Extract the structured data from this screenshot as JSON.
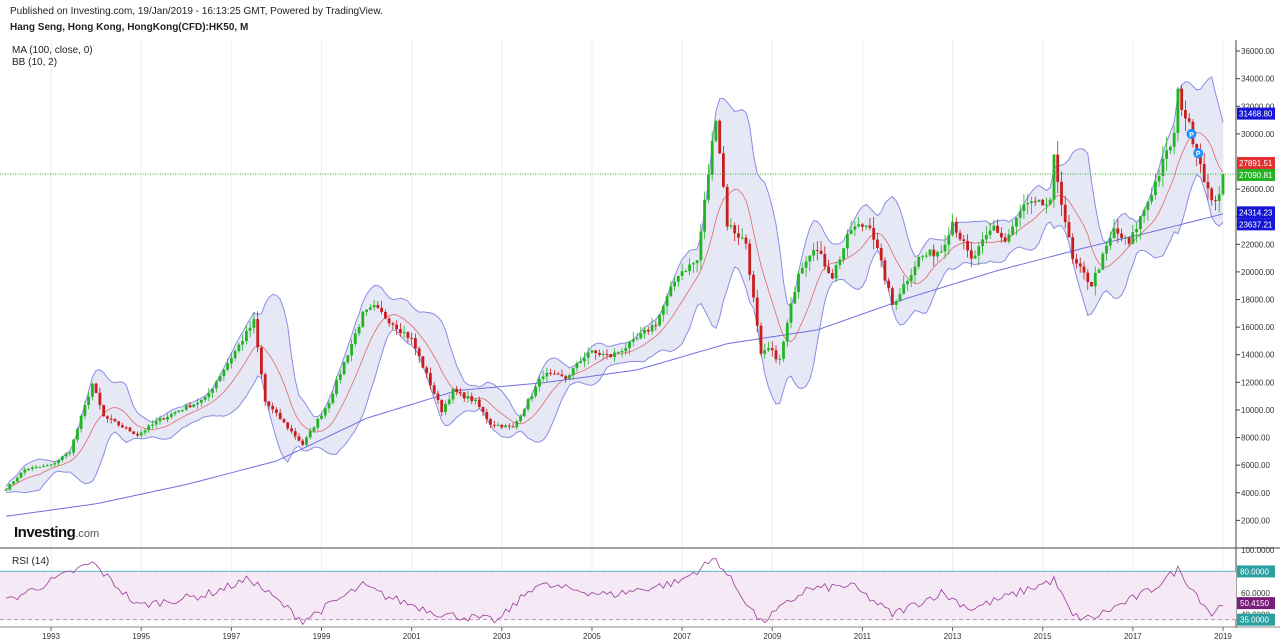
{
  "header": {
    "published": "Published on Investing.com, 19/Jan/2019 - 16:13:25 GMT, Powered by TradingView.",
    "symbol": "Hang Seng, Hong Kong, HongKong(CFD):HK50, M"
  },
  "indicators": {
    "ma": "MA (100, close, 0)",
    "bb": "BB (10, 2)",
    "rsi": "RSI (14)"
  },
  "logo": {
    "main": "Investing",
    "suffix": ".com"
  },
  "colors": {
    "up": "#22b422",
    "down": "#c81e1e",
    "ma": "#6f6fe0",
    "bb_band": "#8c8ce6",
    "bb_fill": "#e6e8f5",
    "bb_mid": "#e06a6a",
    "rsi_line": "#9b3c9b",
    "rsi_fill": "#f5e9f5",
    "price_line": "#22b422",
    "badge_blue": "#1515d8",
    "badge_red": "#e03030",
    "badge_green": "#22b422",
    "badge_purple": "#7a1d7a",
    "marker": "#1e90ff"
  },
  "chart_data": {
    "type": "line",
    "title": "Hang Seng, Hong Kong, HongKong(CFD):HK50, M",
    "interval": "monthly",
    "x_ticks": [
      "1993",
      "1995",
      "1997",
      "1999",
      "2001",
      "2003",
      "2005",
      "2007",
      "2009",
      "2011",
      "2013",
      "2015",
      "2017",
      "2019"
    ],
    "price_axis": {
      "ticks": [
        "2000.00",
        "4000.00",
        "6000.00",
        "8000.00",
        "10000.00",
        "12000.00",
        "14000.00",
        "16000.00",
        "18000.00",
        "20000.00",
        "22000.00",
        "24000.00",
        "26000.00",
        "30000.00",
        "32000.00",
        "34000.00",
        "36000.00"
      ],
      "range": [
        0,
        36800
      ],
      "last_close_line": 27090.81
    },
    "price_badges": [
      {
        "label": "31468.80",
        "value": 31468.8,
        "color": "blue"
      },
      {
        "label": "27891.51",
        "value": 27891.51,
        "color": "red"
      },
      {
        "label": "27090.81",
        "value": 27090.81,
        "color": "green"
      },
      {
        "label": "24314.23",
        "value": 24314.23,
        "color": "blue"
      },
      {
        "label": "23637.21",
        "value": 23637.21,
        "color": "blue"
      }
    ],
    "price_series_keypoints": [
      [
        "1992-01",
        4300
      ],
      [
        "1992-06",
        5700
      ],
      [
        "1993-01",
        6000
      ],
      [
        "1993-06",
        7000
      ],
      [
        "1993-12",
        11900
      ],
      [
        "1994-03",
        9500
      ],
      [
        "1994-12",
        8200
      ],
      [
        "1995-06",
        9300
      ],
      [
        "1995-12",
        10100
      ],
      [
        "1996-06",
        10800
      ],
      [
        "1996-12",
        13400
      ],
      [
        "1997-07",
        16400
      ],
      [
        "1997-10",
        10600
      ],
      [
        "1998-08",
        7500
      ],
      [
        "1999-03",
        10600
      ],
      [
        "1999-12",
        16900
      ],
      [
        "2000-03",
        17400
      ],
      [
        "2000-08",
        16300
      ],
      [
        "2001-01",
        15100
      ],
      [
        "2001-09",
        9950
      ],
      [
        "2001-12",
        11400
      ],
      [
        "2002-06",
        10600
      ],
      [
        "2002-10",
        9000
      ],
      [
        "2003-04",
        8700
      ],
      [
        "2003-12",
        12600
      ],
      [
        "2004-06",
        12300
      ],
      [
        "2004-12",
        14200
      ],
      [
        "2005-06",
        13900
      ],
      [
        "2005-12",
        14900
      ],
      [
        "2006-06",
        16300
      ],
      [
        "2006-12",
        19900
      ],
      [
        "2007-05",
        20800
      ],
      [
        "2007-10",
        31400
      ],
      [
        "2008-01",
        23500
      ],
      [
        "2008-06",
        22100
      ],
      [
        "2008-10",
        13900
      ],
      [
        "2008-12",
        14400
      ],
      [
        "2009-03",
        13600
      ],
      [
        "2009-08",
        20100
      ],
      [
        "2009-12",
        21900
      ],
      [
        "2010-05",
        19700
      ],
      [
        "2010-10",
        23100
      ],
      [
        "2011-03",
        23500
      ],
      [
        "2011-09",
        17600
      ],
      [
        "2012-04",
        21000
      ],
      [
        "2012-10",
        21600
      ],
      [
        "2013-01",
        23700
      ],
      [
        "2013-06",
        20800
      ],
      [
        "2013-12",
        23300
      ],
      [
        "2014-03",
        22200
      ],
      [
        "2014-08",
        24800
      ],
      [
        "2015-03",
        24900
      ],
      [
        "2015-04",
        28100
      ],
      [
        "2015-09",
        20800
      ],
      [
        "2016-02",
        19100
      ],
      [
        "2016-08",
        23000
      ],
      [
        "2016-12",
        22000
      ],
      [
        "2017-06",
        25800
      ],
      [
        "2017-12",
        29900
      ],
      [
        "2018-01",
        32900
      ],
      [
        "2018-06",
        28900
      ],
      [
        "2018-10",
        24900
      ],
      [
        "2018-12",
        25850
      ],
      [
        "2019-01",
        27090
      ]
    ],
    "ma_100_keypoints": [
      [
        "1992-01",
        2300
      ],
      [
        "1994-01",
        3200
      ],
      [
        "1996-01",
        4600
      ],
      [
        "1998-01",
        6300
      ],
      [
        "2000-01",
        9400
      ],
      [
        "2002-01",
        11400
      ],
      [
        "2004-01",
        12000
      ],
      [
        "2006-01",
        12900
      ],
      [
        "2008-01",
        14800
      ],
      [
        "2010-01",
        15800
      ],
      [
        "2012-01",
        18100
      ],
      [
        "2014-01",
        20100
      ],
      [
        "2016-01",
        21800
      ],
      [
        "2017-06",
        22900
      ],
      [
        "2019-01",
        24200
      ]
    ],
    "rsi_axis": {
      "ticks": [
        "100.0000",
        "60.0000",
        "40.0000"
      ],
      "range": [
        30,
        100
      ],
      "bands": [
        35,
        80
      ]
    },
    "rsi_badges": [
      {
        "label": "80.0000",
        "value": 80,
        "color": "teal"
      },
      {
        "label": "50.4150",
        "value": 50.415,
        "color": "purple"
      },
      {
        "label": "35.0000",
        "value": 35,
        "color": "teal"
      }
    ],
    "rsi_keypoints": [
      [
        "1992-01",
        52
      ],
      [
        "1993-12",
        88
      ],
      [
        "1994-12",
        48
      ],
      [
        "1996-06",
        58
      ],
      [
        "1997-06",
        73
      ],
      [
        "1998-08",
        34
      ],
      [
        "1999-12",
        67
      ],
      [
        "2000-06",
        57
      ],
      [
        "2001-09",
        40
      ],
      [
        "2002-12",
        34
      ],
      [
        "2003-10",
        68
      ],
      [
        "2005-06",
        58
      ],
      [
        "2006-12",
        70
      ],
      [
        "2007-10",
        92
      ],
      [
        "2008-10",
        32
      ],
      [
        "2009-10",
        63
      ],
      [
        "2010-10",
        67
      ],
      [
        "2011-09",
        40
      ],
      [
        "2012-10",
        60
      ],
      [
        "2013-06",
        45
      ],
      [
        "2014-08",
        62
      ],
      [
        "2015-04",
        72
      ],
      [
        "2015-09",
        38
      ],
      [
        "2016-02",
        36
      ],
      [
        "2017-06",
        63
      ],
      [
        "2018-01",
        82
      ],
      [
        "2018-10",
        40
      ],
      [
        "2019-01",
        50
      ]
    ]
  }
}
